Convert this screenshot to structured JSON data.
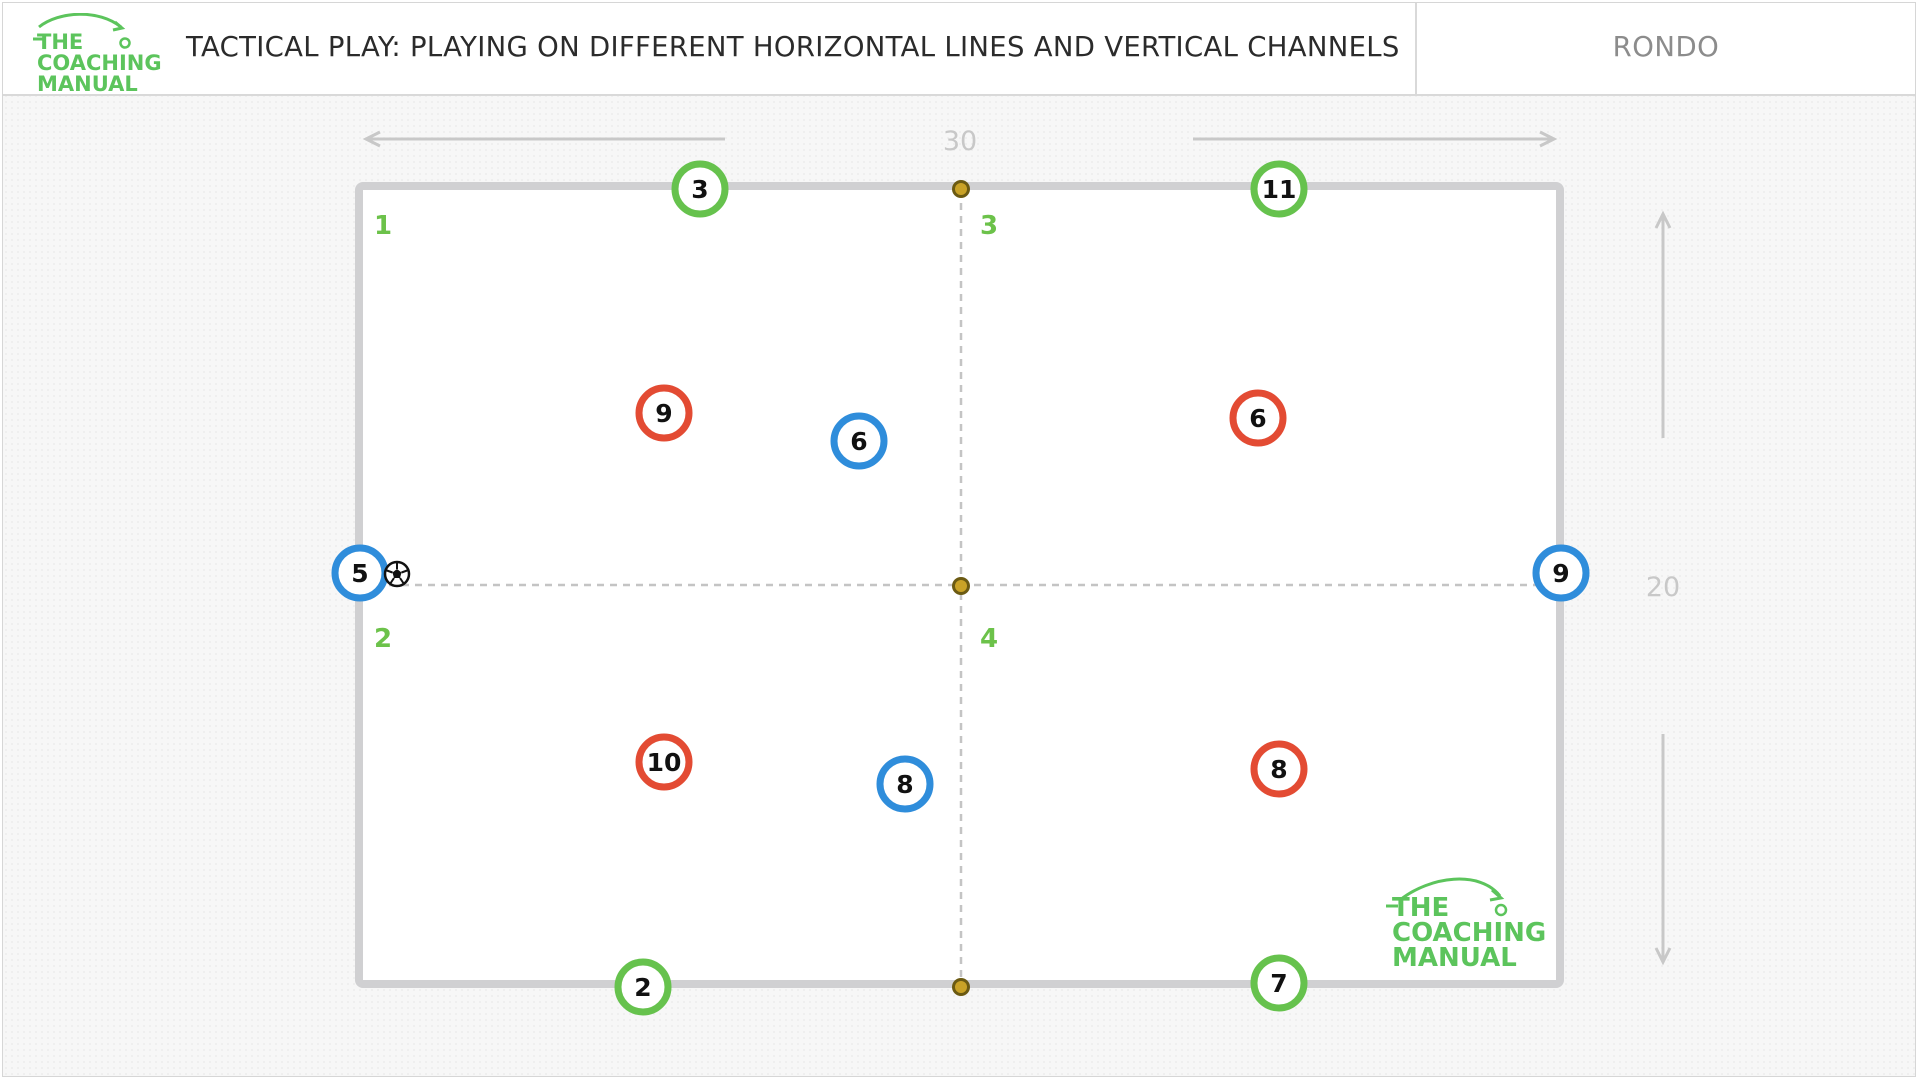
{
  "header": {
    "logo_text": [
      "THE",
      "COACHING",
      "MANUAL"
    ],
    "title": "TACTICAL PLAY: PLAYING ON DIFFERENT HORIZONTAL LINES AND VERTICAL CHANNELS",
    "category": "RONDO"
  },
  "field": {
    "width_label": "30",
    "height_label": "20",
    "zones": [
      "1",
      "3",
      "2",
      "4"
    ],
    "watermark_text": [
      "THE",
      "COACHING",
      "MANUAL"
    ]
  },
  "colors": {
    "blue_team": "#2f8ddb",
    "red_team": "#e34b33",
    "neutral": "#66c24d",
    "cone": "#c9a227",
    "pitch_line": "#d0d0d2",
    "logo_green": "#5cc45c"
  },
  "players": [
    {
      "team": "neutral",
      "number": "3"
    },
    {
      "team": "neutral",
      "number": "11"
    },
    {
      "team": "neutral",
      "number": "2"
    },
    {
      "team": "neutral",
      "number": "7"
    },
    {
      "team": "blue",
      "number": "5"
    },
    {
      "team": "blue",
      "number": "9"
    },
    {
      "team": "blue",
      "number": "6"
    },
    {
      "team": "blue",
      "number": "8"
    },
    {
      "team": "red",
      "number": "9"
    },
    {
      "team": "red",
      "number": "6"
    },
    {
      "team": "red",
      "number": "10"
    },
    {
      "team": "red",
      "number": "8"
    }
  ],
  "ball": {
    "icon": "soccer-ball-icon",
    "holder": "5"
  },
  "cones": [
    "top",
    "center",
    "bottom"
  ]
}
